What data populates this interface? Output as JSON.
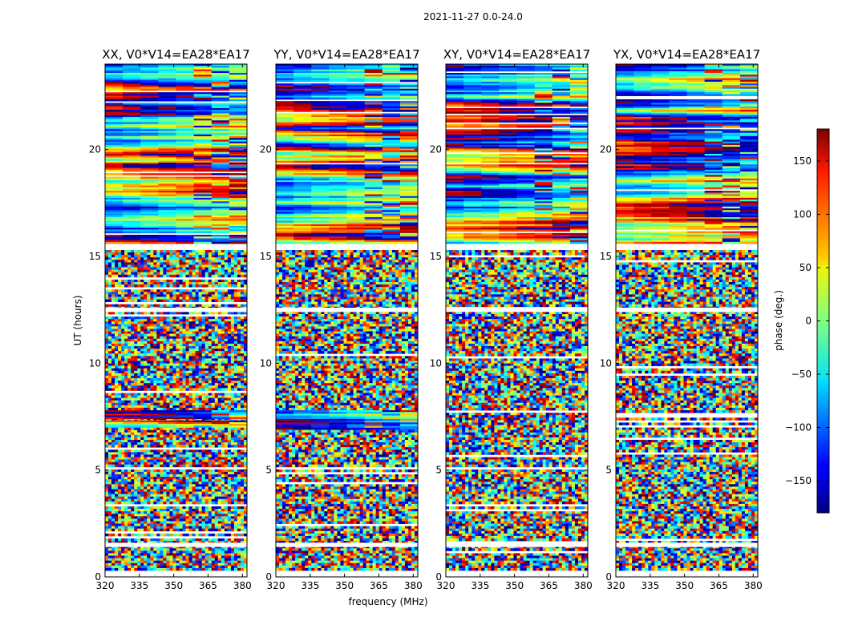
{
  "figure_title": "2021-11-27 0.0-24.0",
  "chart_data": {
    "type": "heatmap",
    "colormap": "jet",
    "xlabel": "frequency (MHz)",
    "ylabel": "UT (hours)",
    "xlim": [
      320,
      382
    ],
    "ylim": [
      0,
      24
    ],
    "x_ticks": [
      320,
      335,
      350,
      365,
      380
    ],
    "y_ticks": [
      0,
      5,
      10,
      15,
      20
    ],
    "colorbar": {
      "label": "phase (deg.)",
      "range": [
        -180,
        180
      ],
      "ticks": [
        150,
        100,
        50,
        0,
        -50,
        -100,
        -150
      ],
      "tick_labels": [
        "150",
        "100",
        "50",
        "0",
        "−50",
        "−100",
        "−150"
      ]
    },
    "panels": [
      {
        "title": "XX, V0*V14=EA28*EA17",
        "coherent_ranges_hours": [
          [
            15.6,
            24.0
          ],
          [
            7.0,
            7.8
          ]
        ],
        "noisy_ranges_hours": [
          [
            0.3,
            15.3
          ]
        ],
        "gap_ranges_hours": [
          [
            1.4,
            1.6
          ],
          [
            12.4,
            12.6
          ]
        ]
      },
      {
        "title": "YY, V0*V14=EA28*EA17",
        "coherent_ranges_hours": [
          [
            15.6,
            24.0
          ],
          [
            6.9,
            7.8
          ]
        ],
        "noisy_ranges_hours": [
          [
            0.3,
            15.3
          ]
        ],
        "gap_ranges_hours": [
          [
            1.4,
            1.6
          ],
          [
            12.4,
            12.6
          ]
        ]
      },
      {
        "title": "XY, V0*V14=EA28*EA17",
        "coherent_ranges_hours": [
          [
            15.6,
            24.0
          ]
        ],
        "noisy_ranges_hours": [
          [
            0.3,
            15.3
          ]
        ],
        "gap_ranges_hours": [
          [
            1.4,
            1.6
          ],
          [
            12.4,
            12.6
          ]
        ]
      },
      {
        "title": "YX, V0*V14=EA28*EA17",
        "coherent_ranges_hours": [
          [
            15.6,
            24.0
          ]
        ],
        "noisy_ranges_hours": [
          [
            0.3,
            15.3
          ]
        ],
        "gap_ranges_hours": [
          [
            1.4,
            1.6
          ],
          [
            12.4,
            12.6
          ]
        ]
      }
    ]
  }
}
